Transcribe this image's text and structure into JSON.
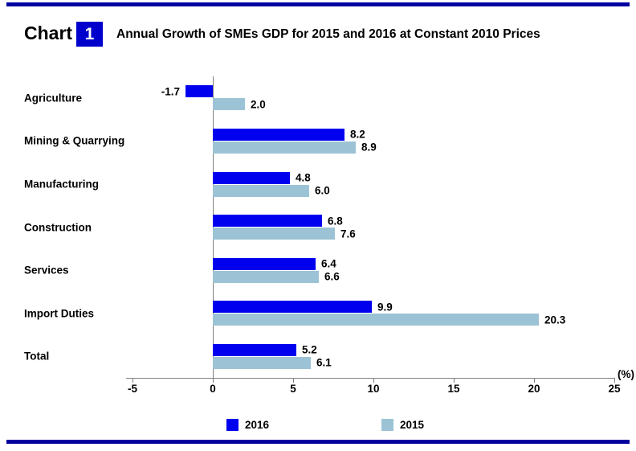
{
  "header": {
    "chart_word": "Chart",
    "chart_number": "1",
    "title": "Annual Growth of SMEs GDP for 2015 and 2016 at Constant 2010 Prices"
  },
  "colors": {
    "rule_blue": "#0000A0",
    "number_box_blue": "#0000CC",
    "series_2016": "#0000EE",
    "series_2015": "#9CC3D5",
    "axis_gray": "#808080"
  },
  "chart_data": {
    "type": "bar",
    "orientation": "horizontal",
    "title": "Annual Growth of SMEs GDP for 2015 and 2016 at Constant 2010 Prices",
    "categories": [
      "Agriculture",
      "Mining & Quarrying",
      "Manufacturing",
      "Construction",
      "Services",
      "Import Duties",
      "Total"
    ],
    "series": [
      {
        "name": "2016",
        "color": "#0000EE",
        "values": [
          -1.7,
          8.2,
          4.8,
          6.8,
          6.4,
          9.9,
          5.2
        ]
      },
      {
        "name": "2015",
        "color": "#9CC3D5",
        "values": [
          2.0,
          8.9,
          6.0,
          7.6,
          6.6,
          20.3,
          6.1
        ]
      }
    ],
    "x_ticks": [
      -5,
      0,
      5,
      10,
      15,
      20,
      25
    ],
    "xlim": [
      -5,
      25
    ],
    "x_axis_unit": "(%)",
    "value_label_decimals": 1,
    "grid": false,
    "legend_position": "bottom",
    "legend": [
      "2016",
      "2015"
    ]
  }
}
